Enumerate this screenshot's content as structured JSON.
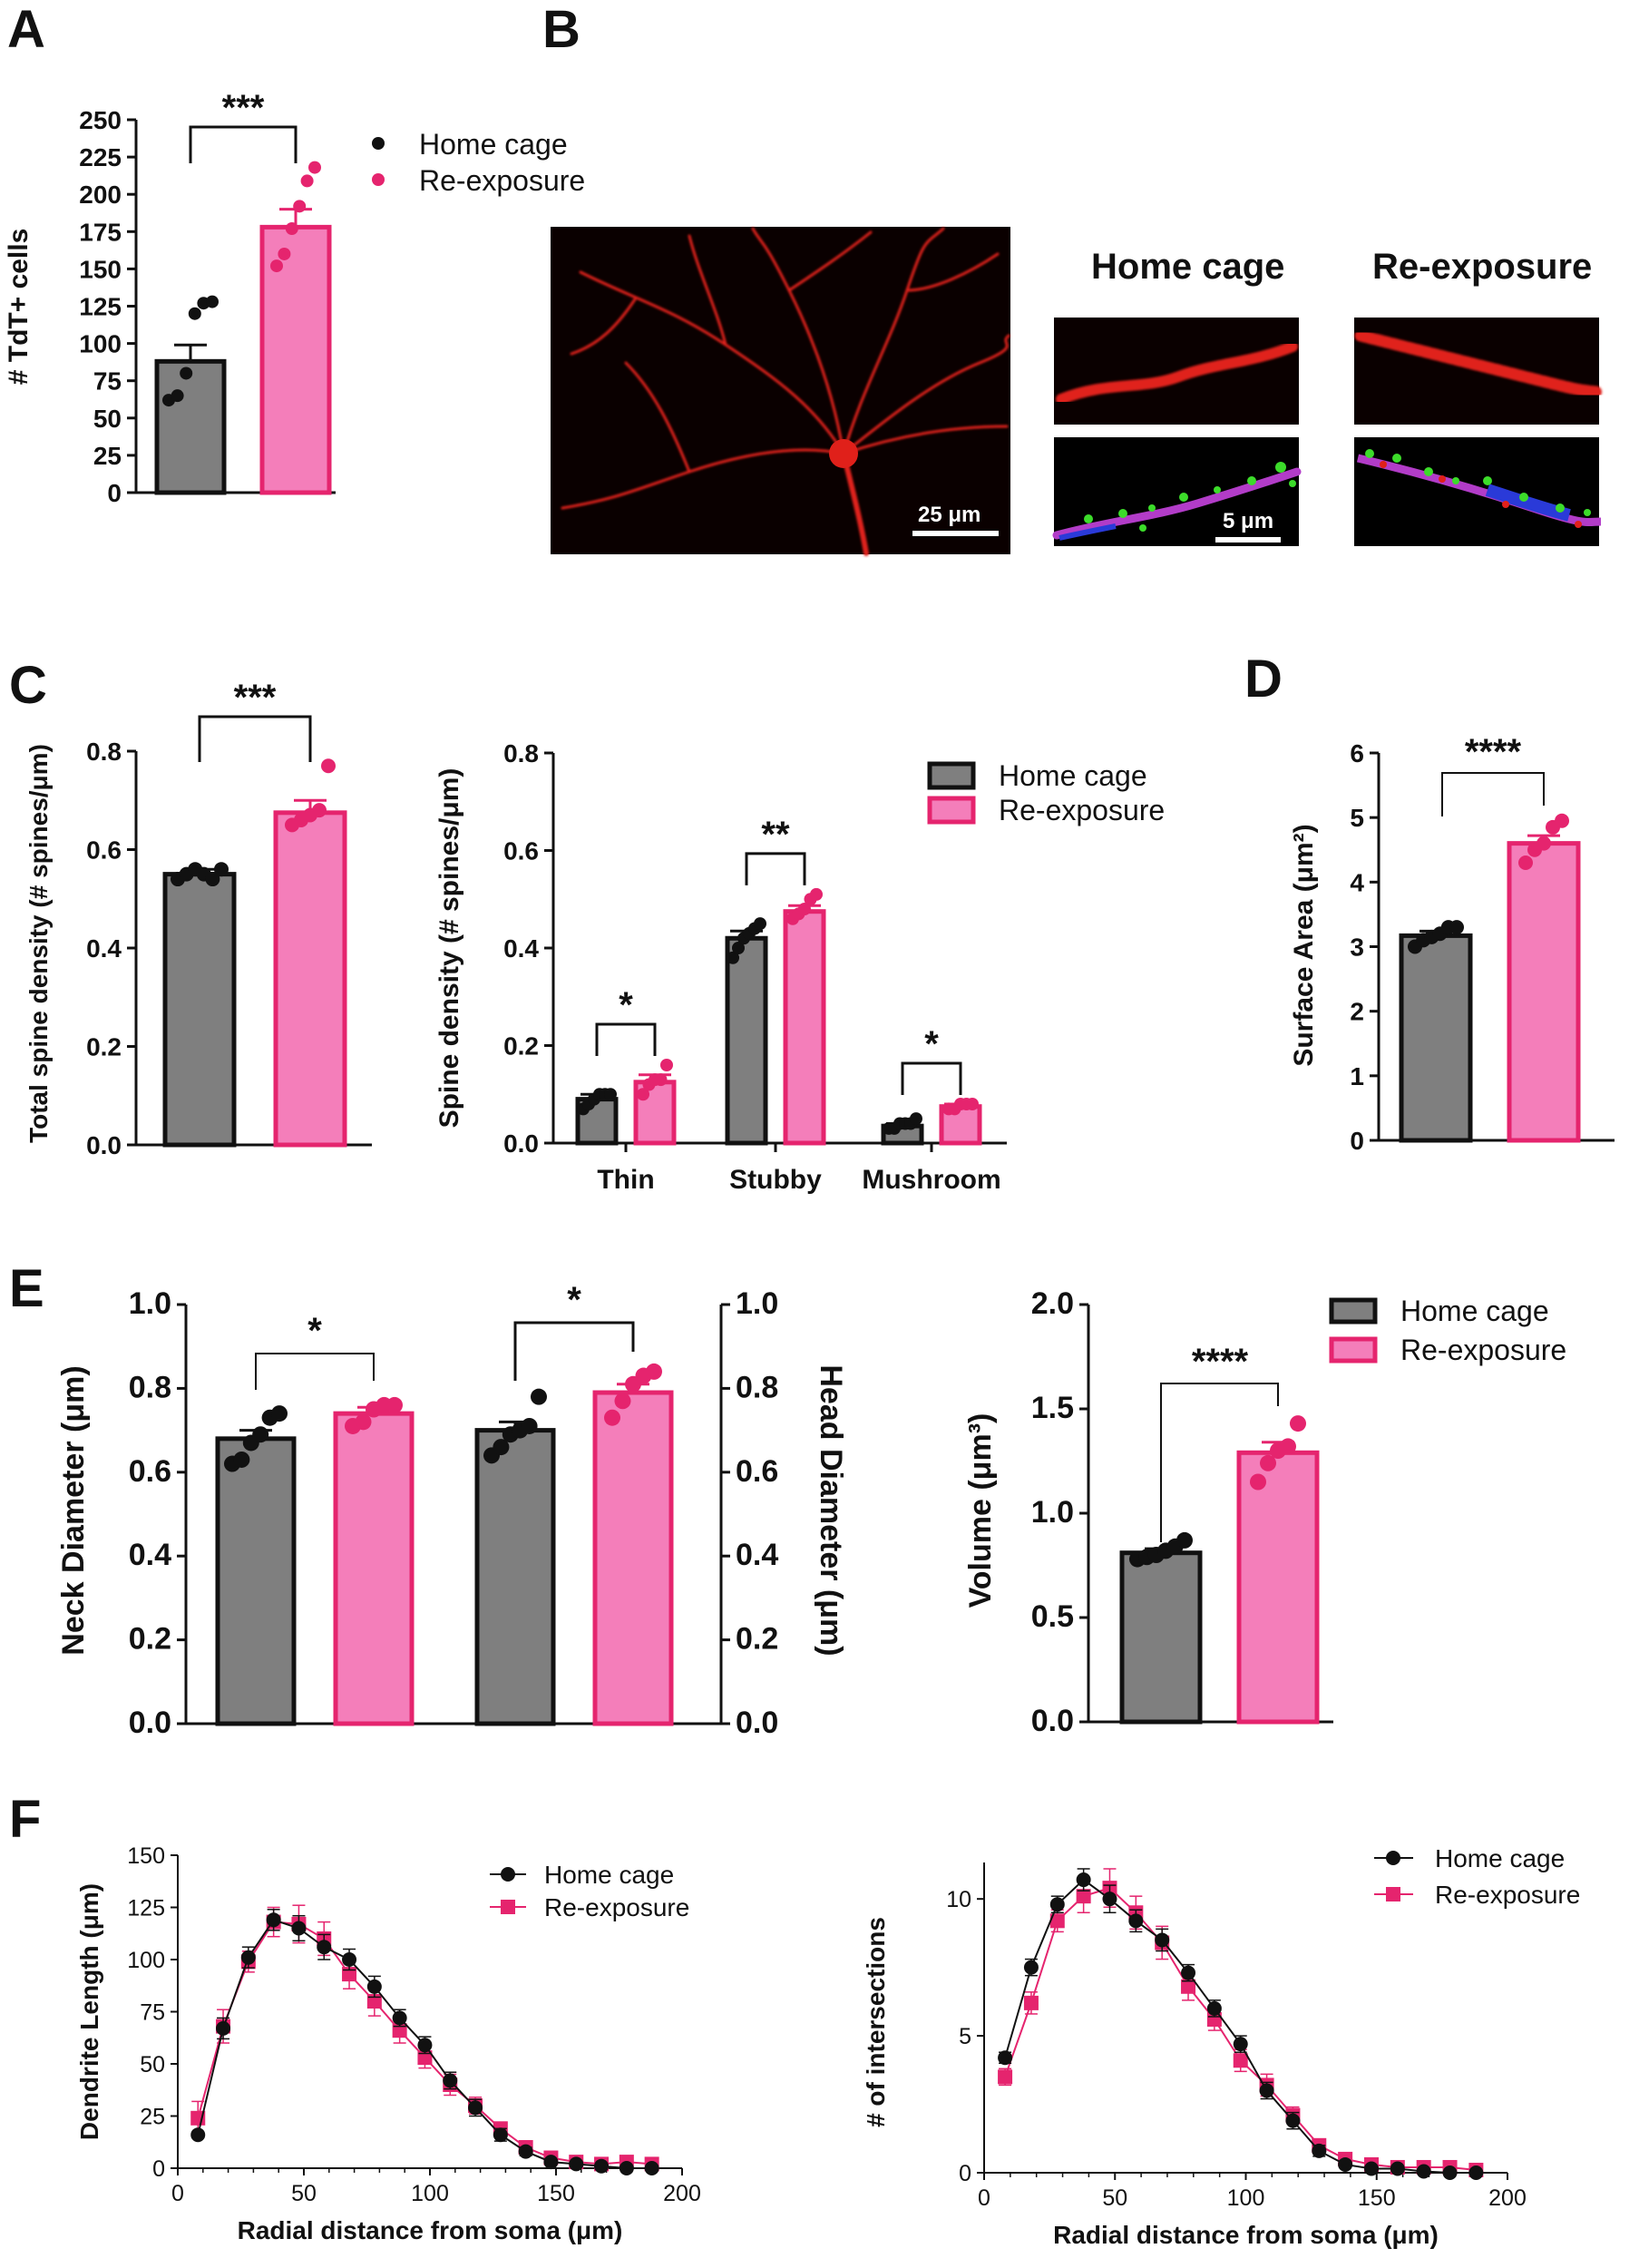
{
  "colors": {
    "home": "#7f7f7f",
    "reexp": "#f47eba",
    "reexp_dot": "#e5246e",
    "ink": "#111111"
  },
  "panels": {
    "A": "A",
    "B": "B",
    "C": "C",
    "D": "D",
    "E": "E",
    "F": "F"
  },
  "panel_b": {
    "home_label": "Home cage",
    "reexp_label": "Re-exposure",
    "scale_large": "25 μm",
    "scale_small": "5 μm"
  },
  "chart_data": [
    {
      "id": "A",
      "type": "bar",
      "ylabel": "# TdT+ cells",
      "ylim": [
        0,
        250
      ],
      "yticks": [
        "0",
        "25",
        "50",
        "75",
        "100",
        "125",
        "150",
        "175",
        "200",
        "225",
        "250"
      ],
      "legend": [
        "Home cage",
        "Re-exposure"
      ],
      "significance": "***",
      "series": [
        {
          "name": "Home cage",
          "mean": 88,
          "sem": 11,
          "points": [
            62,
            65,
            80,
            120,
            127,
            128
          ]
        },
        {
          "name": "Re-exposure",
          "mean": 178,
          "sem": 12,
          "points": [
            152,
            160,
            177,
            192,
            209,
            218
          ]
        }
      ]
    },
    {
      "id": "C-total",
      "type": "bar",
      "ylabel": "Total spine density (# spines/μm)",
      "ylim": [
        0,
        0.8
      ],
      "yticks": [
        "0.0",
        "0.2",
        "0.4",
        "0.6",
        "0.8"
      ],
      "significance": "***",
      "series": [
        {
          "name": "Home cage",
          "mean": 0.55,
          "sem": 0.01,
          "points": [
            0.54,
            0.55,
            0.56,
            0.55,
            0.54,
            0.56
          ]
        },
        {
          "name": "Re-exposure",
          "mean": 0.675,
          "sem": 0.025,
          "points": [
            0.65,
            0.66,
            0.67,
            0.68,
            0.77
          ]
        }
      ]
    },
    {
      "id": "C-types",
      "type": "bar",
      "ylabel": "Spine density (# spines/μm)",
      "categories": [
        "Thin",
        "Stubby",
        "Mushroom"
      ],
      "ylim": [
        0,
        0.8
      ],
      "yticks": [
        "0.0",
        "0.2",
        "0.4",
        "0.6",
        "0.8"
      ],
      "legend": [
        "Home cage",
        "Re-exposure"
      ],
      "significance": [
        "*",
        "**",
        "*"
      ],
      "series": [
        {
          "name": "Home cage",
          "values": [
            0.09,
            0.42,
            0.035
          ],
          "sem": [
            0.01,
            0.015,
            0.005
          ],
          "points": [
            [
              0.07,
              0.08,
              0.09,
              0.1,
              0.1,
              0.1
            ],
            [
              0.38,
              0.4,
              0.42,
              0.43,
              0.44,
              0.45
            ],
            [
              0.03,
              0.03,
              0.04,
              0.04,
              0.04,
              0.05
            ]
          ]
        },
        {
          "name": "Re-exposure",
          "values": [
            0.125,
            0.475,
            0.075
          ],
          "sem": [
            0.015,
            0.012,
            0.005
          ],
          "points": [
            [
              0.1,
              0.12,
              0.13,
              0.13,
              0.16
            ],
            [
              0.46,
              0.47,
              0.48,
              0.5,
              0.51
            ],
            [
              0.07,
              0.07,
              0.08,
              0.08,
              0.08
            ]
          ]
        }
      ]
    },
    {
      "id": "D",
      "type": "bar",
      "ylabel": "Surface Area (μm²)",
      "ylim": [
        0,
        6
      ],
      "yticks": [
        "0",
        "1",
        "2",
        "3",
        "4",
        "5",
        "6"
      ],
      "significance": "****",
      "series": [
        {
          "name": "Home cage",
          "mean": 3.17,
          "sem": 0.07,
          "points": [
            3.0,
            3.1,
            3.15,
            3.2,
            3.3,
            3.3
          ]
        },
        {
          "name": "Re-exposure",
          "mean": 4.6,
          "sem": 0.12,
          "points": [
            4.3,
            4.5,
            4.6,
            4.85,
            4.95
          ]
        }
      ]
    },
    {
      "id": "E-diameter",
      "type": "bar",
      "ylabel_left": "Neck Diameter (μm)",
      "ylabel_right": "Head Diameter (μm)",
      "ylim": [
        0,
        1.0
      ],
      "yticks": [
        "0.0",
        "0.2",
        "0.4",
        "0.6",
        "0.8",
        "1.0"
      ],
      "significance": [
        "*",
        "*"
      ],
      "groups": [
        {
          "name": "Neck",
          "series": [
            {
              "name": "Home cage",
              "mean": 0.68,
              "sem": 0.02,
              "points": [
                0.62,
                0.63,
                0.67,
                0.69,
                0.73,
                0.74
              ]
            },
            {
              "name": "Re-exposure",
              "mean": 0.74,
              "sem": 0.015,
              "points": [
                0.71,
                0.72,
                0.75,
                0.76,
                0.76
              ]
            }
          ]
        },
        {
          "name": "Head",
          "series": [
            {
              "name": "Home cage",
              "mean": 0.7,
              "sem": 0.02,
              "points": [
                0.64,
                0.66,
                0.69,
                0.7,
                0.71,
                0.78
              ]
            },
            {
              "name": "Re-exposure",
              "mean": 0.79,
              "sem": 0.02,
              "points": [
                0.73,
                0.77,
                0.81,
                0.83,
                0.84
              ]
            }
          ]
        }
      ]
    },
    {
      "id": "E-volume",
      "type": "bar",
      "ylabel": "Volume (μm³)",
      "ylim": [
        0,
        2.0
      ],
      "yticks": [
        "0.0",
        "0.5",
        "1.0",
        "1.5",
        "2.0"
      ],
      "legend": [
        "Home cage",
        "Re-exposure"
      ],
      "significance": "****",
      "series": [
        {
          "name": "Home cage",
          "mean": 0.81,
          "sem": 0.02,
          "points": [
            0.78,
            0.79,
            0.8,
            0.82,
            0.84,
            0.87
          ]
        },
        {
          "name": "Re-exposure",
          "mean": 1.29,
          "sem": 0.05,
          "points": [
            1.15,
            1.24,
            1.3,
            1.32,
            1.43
          ]
        }
      ]
    },
    {
      "id": "F-length",
      "type": "line",
      "xlabel": "Radial distance from soma (μm)",
      "ylabel": "Dendrite Length (μm)",
      "xlim": [
        0,
        200
      ],
      "ylim": [
        0,
        150
      ],
      "xticks": [
        "0",
        "50",
        "100",
        "150",
        "200"
      ],
      "yticks": [
        "0",
        "25",
        "50",
        "75",
        "100",
        "125",
        "150"
      ],
      "legend": [
        "Home cage",
        "Re-exposure"
      ],
      "x": [
        8,
        18,
        28,
        38,
        48,
        58,
        68,
        78,
        88,
        98,
        108,
        118,
        128,
        138,
        148,
        158,
        168,
        178,
        188
      ],
      "series": [
        {
          "name": "Home cage",
          "values": [
            16,
            67,
            101,
            119,
            115,
            106,
            100,
            87,
            72,
            59,
            42,
            29,
            16,
            8,
            3,
            2,
            1,
            0,
            0
          ],
          "err": [
            1,
            5,
            5,
            5,
            6,
            6,
            5,
            5,
            4,
            4,
            4,
            4,
            3,
            2,
            1,
            1,
            1,
            0,
            0
          ]
        },
        {
          "name": "Re-exposure",
          "values": [
            24,
            68,
            99,
            118,
            117,
            110,
            93,
            80,
            66,
            53,
            40,
            30,
            19,
            10,
            5,
            3,
            2,
            3,
            2
          ],
          "err": [
            8,
            8,
            5,
            7,
            9,
            8,
            7,
            7,
            6,
            5,
            5,
            4,
            3,
            2,
            2,
            1,
            1,
            1,
            1
          ]
        }
      ]
    },
    {
      "id": "F-intersections",
      "type": "line",
      "xlabel": "Radial distance from soma (μm)",
      "ylabel": "# of intersections",
      "xlim": [
        0,
        200
      ],
      "ylim": [
        0,
        11
      ],
      "xticks": [
        "0",
        "50",
        "100",
        "150",
        "200"
      ],
      "yticks": [
        "0",
        "5",
        "10"
      ],
      "legend": [
        "Home cage",
        "Re-exposure"
      ],
      "x": [
        8,
        18,
        28,
        38,
        48,
        58,
        68,
        78,
        88,
        98,
        108,
        118,
        128,
        138,
        148,
        158,
        168,
        178,
        188
      ],
      "series": [
        {
          "name": "Home cage",
          "values": [
            4.2,
            7.5,
            9.8,
            10.7,
            10.0,
            9.2,
            8.5,
            7.3,
            6.0,
            4.7,
            3.0,
            1.9,
            0.8,
            0.3,
            0.15,
            0.15,
            0.05,
            0,
            0
          ],
          "err": [
            0.2,
            0.3,
            0.3,
            0.4,
            0.5,
            0.4,
            0.4,
            0.3,
            0.3,
            0.3,
            0.3,
            0.3,
            0.2,
            0.1,
            0.1,
            0.1,
            0.05,
            0,
            0
          ]
        },
        {
          "name": "Re-exposure",
          "values": [
            3.5,
            6.2,
            9.2,
            10.1,
            10.4,
            9.5,
            8.4,
            6.8,
            5.6,
            4.1,
            3.2,
            2.1,
            1.0,
            0.5,
            0.3,
            0.2,
            0.2,
            0.2,
            0.1
          ],
          "err": [
            0.3,
            0.4,
            0.4,
            0.6,
            0.7,
            0.6,
            0.6,
            0.5,
            0.4,
            0.4,
            0.4,
            0.3,
            0.2,
            0.1,
            0.1,
            0.1,
            0.1,
            0.1,
            0.1
          ]
        }
      ]
    }
  ]
}
